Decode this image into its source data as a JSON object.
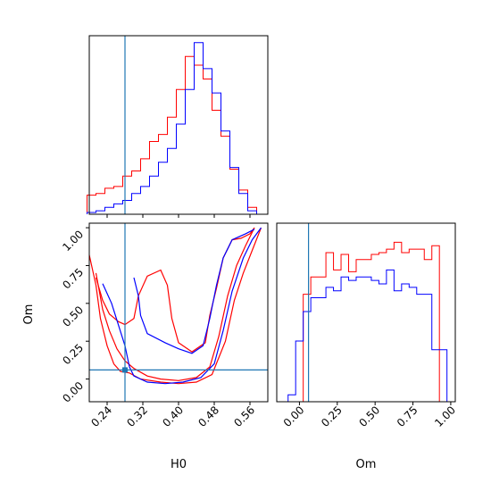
{
  "chart_data": [
    {
      "type": "histogram",
      "param": "H0",
      "xlim": [
        0.2,
        0.6
      ],
      "truth": 0.28,
      "colors": {
        "a": "#ff0000",
        "b": "#0000ff",
        "truth": "#1f77b4"
      },
      "bins": [
        0.205,
        0.225,
        0.245,
        0.265,
        0.285,
        0.305,
        0.325,
        0.345,
        0.365,
        0.385,
        0.405,
        0.425,
        0.445,
        0.465,
        0.485,
        0.505,
        0.525,
        0.545,
        0.565,
        0.585
      ],
      "series": [
        {
          "values": [
            0.11,
            0.12,
            0.15,
            0.16,
            0.22,
            0.25,
            0.32,
            0.42,
            0.46,
            0.56,
            0.72,
            0.91,
            0.86,
            0.78,
            0.6,
            0.45,
            0.26,
            0.14,
            0.04
          ]
        },
        {
          "values": [
            0.01,
            0.02,
            0.04,
            0.06,
            0.08,
            0.12,
            0.16,
            0.22,
            0.3,
            0.38,
            0.52,
            0.72,
            0.99,
            0.84,
            0.7,
            0.48,
            0.27,
            0.12,
            0.02
          ]
        }
      ]
    },
    {
      "type": "contour",
      "params": [
        "H0",
        "Om"
      ],
      "xlabel": "H0",
      "ylabel": "Om",
      "xticks": [
        "0.24",
        "0.32",
        "0.40",
        "0.48",
        "0.56"
      ],
      "xtick_values": [
        0.24,
        0.32,
        0.4,
        0.48,
        0.56
      ],
      "yticks": [
        "0.00",
        "0.25",
        "0.50",
        "0.75",
        "1.00"
      ],
      "ytick_values": [
        0.0,
        0.25,
        0.5,
        0.75,
        1.0
      ],
      "xlim": [
        0.2,
        0.6
      ],
      "ylim": [
        -0.15,
        1.03
      ],
      "truth": {
        "H0": 0.28,
        "Om": 0.06
      },
      "series": [
        {
          "contours": [
            [
              [
                0.215,
                0.67
              ],
              [
                0.23,
                0.52
              ],
              [
                0.245,
                0.43
              ],
              [
                0.265,
                0.38
              ],
              [
                0.28,
                0.36
              ],
              [
                0.3,
                0.4
              ],
              [
                0.31,
                0.55
              ],
              [
                0.33,
                0.68
              ],
              [
                0.36,
                0.72
              ],
              [
                0.375,
                0.62
              ],
              [
                0.385,
                0.4
              ],
              [
                0.4,
                0.24
              ],
              [
                0.43,
                0.18
              ],
              [
                0.46,
                0.24
              ],
              [
                0.47,
                0.42
              ],
              [
                0.485,
                0.6
              ],
              [
                0.5,
                0.8
              ],
              [
                0.52,
                0.92
              ],
              [
                0.54,
                0.93
              ],
              [
                0.56,
                0.96
              ],
              [
                0.57,
                1.0
              ]
            ],
            [
              [
                0.2,
                0.82
              ],
              [
                0.215,
                0.62
              ],
              [
                0.225,
                0.4
              ],
              [
                0.24,
                0.22
              ],
              [
                0.255,
                0.1
              ],
              [
                0.27,
                0.05
              ],
              [
                0.29,
                0.04
              ],
              [
                0.315,
                0.0
              ],
              [
                0.36,
                -0.02
              ],
              [
                0.4,
                -0.03
              ],
              [
                0.44,
                -0.02
              ],
              [
                0.475,
                0.03
              ],
              [
                0.505,
                0.25
              ],
              [
                0.525,
                0.52
              ],
              [
                0.545,
                0.7
              ],
              [
                0.565,
                0.85
              ],
              [
                0.585,
                1.0
              ]
            ],
            [
              [
                0.215,
                0.7
              ],
              [
                0.23,
                0.46
              ],
              [
                0.245,
                0.32
              ],
              [
                0.262,
                0.2
              ],
              [
                0.28,
                0.12
              ],
              [
                0.3,
                0.07
              ],
              [
                0.33,
                0.02
              ],
              [
                0.36,
                0.0
              ],
              [
                0.4,
                -0.01
              ],
              [
                0.44,
                0.01
              ],
              [
                0.47,
                0.08
              ],
              [
                0.49,
                0.28
              ],
              [
                0.51,
                0.55
              ],
              [
                0.53,
                0.75
              ],
              [
                0.55,
                0.88
              ],
              [
                0.57,
                1.0
              ]
            ]
          ]
        },
        {
          "contours": [
            [
              [
                0.3,
                0.67
              ],
              [
                0.31,
                0.55
              ],
              [
                0.315,
                0.42
              ],
              [
                0.33,
                0.3
              ],
              [
                0.37,
                0.24
              ],
              [
                0.4,
                0.2
              ],
              [
                0.43,
                0.17
              ],
              [
                0.455,
                0.22
              ],
              [
                0.47,
                0.4
              ],
              [
                0.485,
                0.62
              ],
              [
                0.5,
                0.8
              ],
              [
                0.52,
                0.92
              ],
              [
                0.55,
                0.96
              ],
              [
                0.57,
                0.99
              ]
            ],
            [
              [
                0.23,
                0.63
              ],
              [
                0.25,
                0.5
              ],
              [
                0.265,
                0.36
              ],
              [
                0.28,
                0.22
              ],
              [
                0.29,
                0.08
              ],
              [
                0.3,
                0.02
              ],
              [
                0.33,
                -0.02
              ],
              [
                0.37,
                -0.03
              ],
              [
                0.41,
                -0.02
              ],
              [
                0.45,
                0.01
              ],
              [
                0.48,
                0.1
              ],
              [
                0.5,
                0.32
              ],
              [
                0.52,
                0.58
              ],
              [
                0.545,
                0.8
              ],
              [
                0.565,
                0.92
              ],
              [
                0.585,
                1.0
              ]
            ]
          ]
        }
      ]
    },
    {
      "type": "histogram",
      "param": "Om",
      "xlabel": "Om",
      "xticks": [
        "0.00",
        "0.25",
        "0.50",
        "0.75",
        "1.00"
      ],
      "xtick_values": [
        0.0,
        0.25,
        0.5,
        0.75,
        1.0
      ],
      "xlim": [
        -0.15,
        1.03
      ],
      "truth": 0.06,
      "bins": [
        -0.1,
        -0.05,
        0.0,
        0.05,
        0.1,
        0.15,
        0.2,
        0.25,
        0.3,
        0.35,
        0.4,
        0.45,
        0.5,
        0.55,
        0.6,
        0.65,
        0.7,
        0.75,
        0.8,
        0.85,
        0.9,
        0.95,
        1.0
      ],
      "series": [
        {
          "values": [
            0.0,
            0.0,
            0.0,
            0.62,
            0.72,
            0.72,
            0.86,
            0.76,
            0.85,
            0.75,
            0.82,
            0.82,
            0.85,
            0.86,
            0.88,
            0.92,
            0.86,
            0.88,
            0.88,
            0.82,
            0.9,
            0.0
          ]
        },
        {
          "values": [
            0.0,
            0.04,
            0.35,
            0.52,
            0.6,
            0.6,
            0.66,
            0.64,
            0.72,
            0.7,
            0.72,
            0.72,
            0.7,
            0.68,
            0.76,
            0.64,
            0.68,
            0.66,
            0.62,
            0.62,
            0.3,
            0.3
          ]
        }
      ]
    }
  ]
}
